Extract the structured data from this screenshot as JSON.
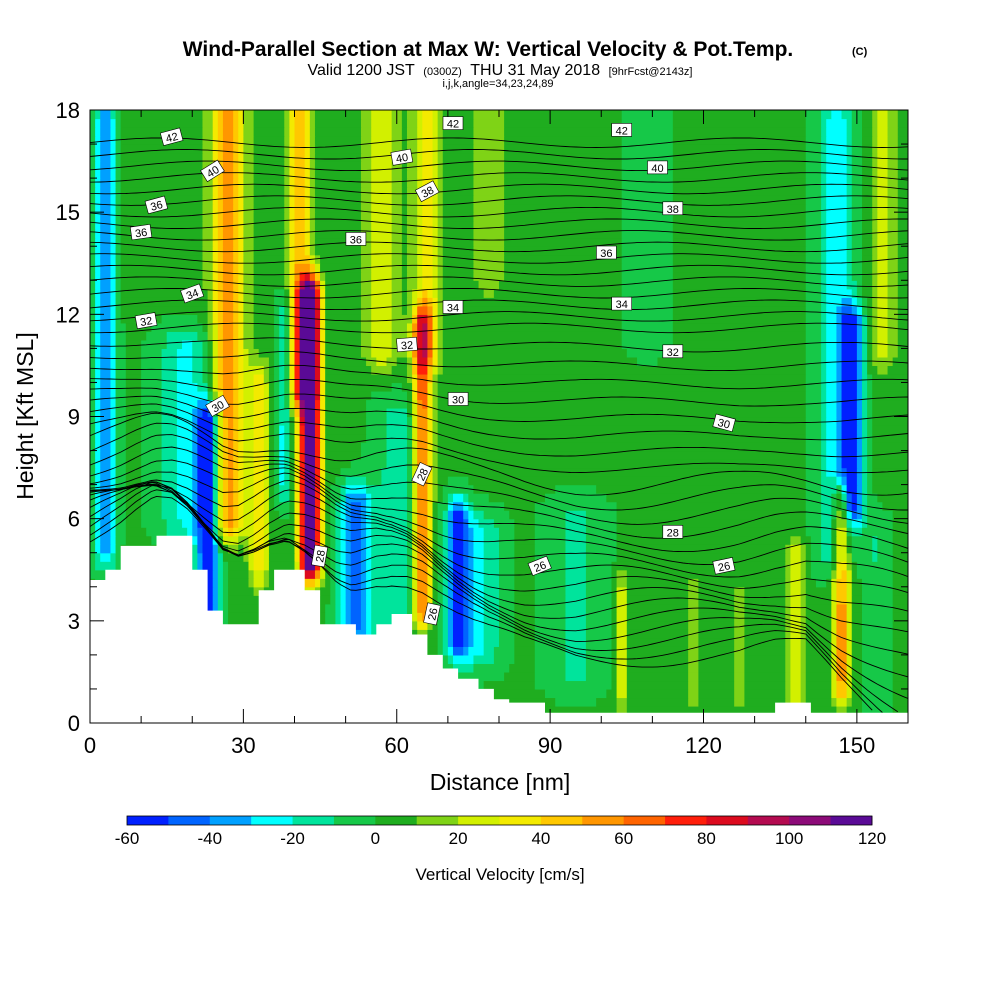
{
  "chart_data": {
    "type": "heatmap",
    "title": "Wind-Parallel Section at Max W: Vertical Velocity & Pot.Temp.",
    "title_mark": "(C)",
    "subtitle": {
      "valid_prefix": "Valid 1200 JST",
      "utc": "(0300Z)",
      "valid_date": "THU 31 May 2018",
      "forecast": "[9hrFcst@2143z]"
    },
    "params_line": "i,j,k,angle=34,23,24,89",
    "xlabel": "Distance [nm]",
    "ylabel": "Height [Kft MSL]",
    "xlim": [
      0,
      160
    ],
    "ylim": [
      0,
      18
    ],
    "x_ticks": [
      "0",
      "30",
      "60",
      "90",
      "120",
      "150"
    ],
    "y_ticks": [
      "0",
      "3",
      "6",
      "9",
      "12",
      "15",
      "18"
    ],
    "colorbar": {
      "label": "Vertical Velocity [cm/s]",
      "range": [
        -60,
        120
      ],
      "tick_labels": [
        "-60",
        "-40",
        "-20",
        "0",
        "20",
        "40",
        "60",
        "80",
        "100",
        "120"
      ],
      "colors": [
        "#0020ff",
        "#0064ff",
        "#00a0ff",
        "#00ffff",
        "#00e49c",
        "#16c848",
        "#1fad1f",
        "#7fd316",
        "#d2f000",
        "#f3ea00",
        "#ffc800",
        "#ff9600",
        "#ff6400",
        "#ff1e0a",
        "#dc0a1e",
        "#b40a50",
        "#8c0a78",
        "#5a0a96"
      ]
    },
    "vertical_velocity_field": {
      "background": 2,
      "plumes": [
        {
          "x": 3,
          "y0": 5.2,
          "y1": 17.6,
          "amp": -42,
          "w": 2.0
        },
        {
          "x": 23,
          "y0": 3.5,
          "y1": 8.8,
          "amp": -62,
          "w": 2.2
        },
        {
          "x": 19,
          "y0": 6.0,
          "y1": 11.0,
          "amp": -24,
          "w": 5.5
        },
        {
          "x": 27,
          "y0": 6.0,
          "y1": 18.0,
          "amp": 58,
          "w": 3.2
        },
        {
          "x": 33,
          "y0": 4.6,
          "y1": 10.0,
          "amp": 32,
          "w": 2.0
        },
        {
          "x": 41,
          "y0": 9.8,
          "y1": 17.8,
          "amp": 44,
          "w": 2.4
        },
        {
          "x": 43,
          "y0": 4.8,
          "y1": 12.5,
          "amp": 122,
          "w": 2.1
        },
        {
          "x": 38,
          "y0": 7.0,
          "y1": 12.0,
          "amp": -26,
          "w": 1.4
        },
        {
          "x": 52,
          "y0": 2.8,
          "y1": 6.4,
          "amp": -44,
          "w": 3.2
        },
        {
          "x": 60,
          "y0": 3.0,
          "y1": 9.0,
          "amp": -16,
          "w": 4.5
        },
        {
          "x": 57,
          "y0": 11.0,
          "y1": 18.0,
          "amp": 26,
          "w": 3.4
        },
        {
          "x": 65,
          "y0": 3.4,
          "y1": 11.6,
          "amp": 66,
          "w": 1.8
        },
        {
          "x": 66,
          "y0": 11.0,
          "y1": 18.0,
          "amp": 34,
          "w": 2.8
        },
        {
          "x": 72,
          "y0": 2.5,
          "y1": 6.0,
          "amp": -52,
          "w": 2.2
        },
        {
          "x": 76,
          "y0": 2.2,
          "y1": 5.6,
          "amp": -22,
          "w": 4.5
        },
        {
          "x": 78,
          "y0": 13.0,
          "y1": 18.0,
          "amp": 12,
          "w": 4.0
        },
        {
          "x": 95,
          "y0": 1.5,
          "y1": 6.0,
          "amp": -14,
          "w": 6.0
        },
        {
          "x": 104,
          "y0": 1.0,
          "y1": 3.8,
          "amp": 26,
          "w": 1.2
        },
        {
          "x": 118,
          "y0": 1.2,
          "y1": 3.6,
          "amp": 18,
          "w": 1.5
        },
        {
          "x": 127,
          "y0": 1.0,
          "y1": 3.4,
          "amp": 16,
          "w": 1.4
        },
        {
          "x": 109,
          "y0": 11.5,
          "y1": 18.0,
          "amp": -12,
          "w": 4.0
        },
        {
          "x": 138,
          "y0": 0.8,
          "y1": 4.8,
          "amp": 28,
          "w": 1.8
        },
        {
          "x": 147,
          "y0": 1.2,
          "y1": 6.4,
          "amp": 52,
          "w": 1.8
        },
        {
          "x": 149,
          "y0": 6.5,
          "y1": 11.6,
          "amp": -56,
          "w": 2.2
        },
        {
          "x": 146,
          "y0": 5.0,
          "y1": 17.8,
          "amp": -26,
          "w": 3.8
        },
        {
          "x": 155,
          "y0": 11.0,
          "y1": 18.0,
          "amp": 20,
          "w": 2.8
        },
        {
          "x": 154,
          "y0": 0.5,
          "y1": 5.5,
          "amp": -12,
          "w": 2.5
        }
      ]
    },
    "terrain_steps": [
      [
        0,
        4.2
      ],
      [
        3,
        4.5
      ],
      [
        6,
        5.2
      ],
      [
        13,
        5.5
      ],
      [
        20,
        4.5
      ],
      [
        23,
        3.3
      ],
      [
        26,
        2.9
      ],
      [
        33,
        3.9
      ],
      [
        36,
        4.5
      ],
      [
        42,
        3.9
      ],
      [
        45,
        2.9
      ],
      [
        52,
        2.6
      ],
      [
        56,
        2.9
      ],
      [
        59,
        3.2
      ],
      [
        63,
        2.6
      ],
      [
        66,
        2.0
      ],
      [
        69,
        1.6
      ],
      [
        72,
        1.3
      ],
      [
        76,
        1.0
      ],
      [
        79,
        0.7
      ],
      [
        82,
        0.6
      ],
      [
        89,
        0.3
      ],
      [
        134,
        0.6
      ],
      [
        141,
        0.3
      ],
      [
        160,
        0.3
      ]
    ],
    "potential_temperature": {
      "levels": [
        26,
        28,
        30,
        32,
        34,
        36,
        38,
        40,
        42
      ],
      "labels": [
        {
          "text": "42",
          "x": 16,
          "y": 17.2,
          "angle": -15
        },
        {
          "text": "40",
          "x": 24,
          "y": 16.2,
          "angle": -32
        },
        {
          "text": "36",
          "x": 13,
          "y": 15.2,
          "angle": -15
        },
        {
          "text": "36",
          "x": 10,
          "y": 14.4,
          "angle": -8
        },
        {
          "text": "34",
          "x": 20,
          "y": 12.6,
          "angle": -20
        },
        {
          "text": "32",
          "x": 11,
          "y": 11.8,
          "angle": -10
        },
        {
          "text": "30",
          "x": 25,
          "y": 9.3,
          "angle": -30
        },
        {
          "text": "42",
          "x": 71,
          "y": 17.6,
          "angle": 0
        },
        {
          "text": "40",
          "x": 61,
          "y": 16.6,
          "angle": -10
        },
        {
          "text": "38",
          "x": 66,
          "y": 15.6,
          "angle": -28
        },
        {
          "text": "36",
          "x": 52,
          "y": 14.2,
          "angle": 0
        },
        {
          "text": "34",
          "x": 71,
          "y": 12.2,
          "angle": 0
        },
        {
          "text": "32",
          "x": 62,
          "y": 11.1,
          "angle": -5
        },
        {
          "text": "30",
          "x": 72,
          "y": 9.5,
          "angle": 0
        },
        {
          "text": "28",
          "x": 65,
          "y": 7.3,
          "angle": -65
        },
        {
          "text": "28",
          "x": 45,
          "y": 4.9,
          "angle": -80
        },
        {
          "text": "26",
          "x": 67,
          "y": 3.2,
          "angle": -78
        },
        {
          "text": "26",
          "x": 88,
          "y": 4.6,
          "angle": -22
        },
        {
          "text": "42",
          "x": 104,
          "y": 17.4,
          "angle": 0
        },
        {
          "text": "40",
          "x": 111,
          "y": 16.3,
          "angle": 0
        },
        {
          "text": "38",
          "x": 114,
          "y": 15.1,
          "angle": 0
        },
        {
          "text": "36",
          "x": 101,
          "y": 13.8,
          "angle": 0
        },
        {
          "text": "34",
          "x": 104,
          "y": 12.3,
          "angle": 0
        },
        {
          "text": "32",
          "x": 114,
          "y": 10.9,
          "angle": 0
        },
        {
          "text": "30",
          "x": 124,
          "y": 8.8,
          "angle": 15
        },
        {
          "text": "28",
          "x": 114,
          "y": 5.6,
          "angle": 0
        },
        {
          "text": "26",
          "x": 124,
          "y": 4.6,
          "angle": -12
        }
      ]
    }
  }
}
